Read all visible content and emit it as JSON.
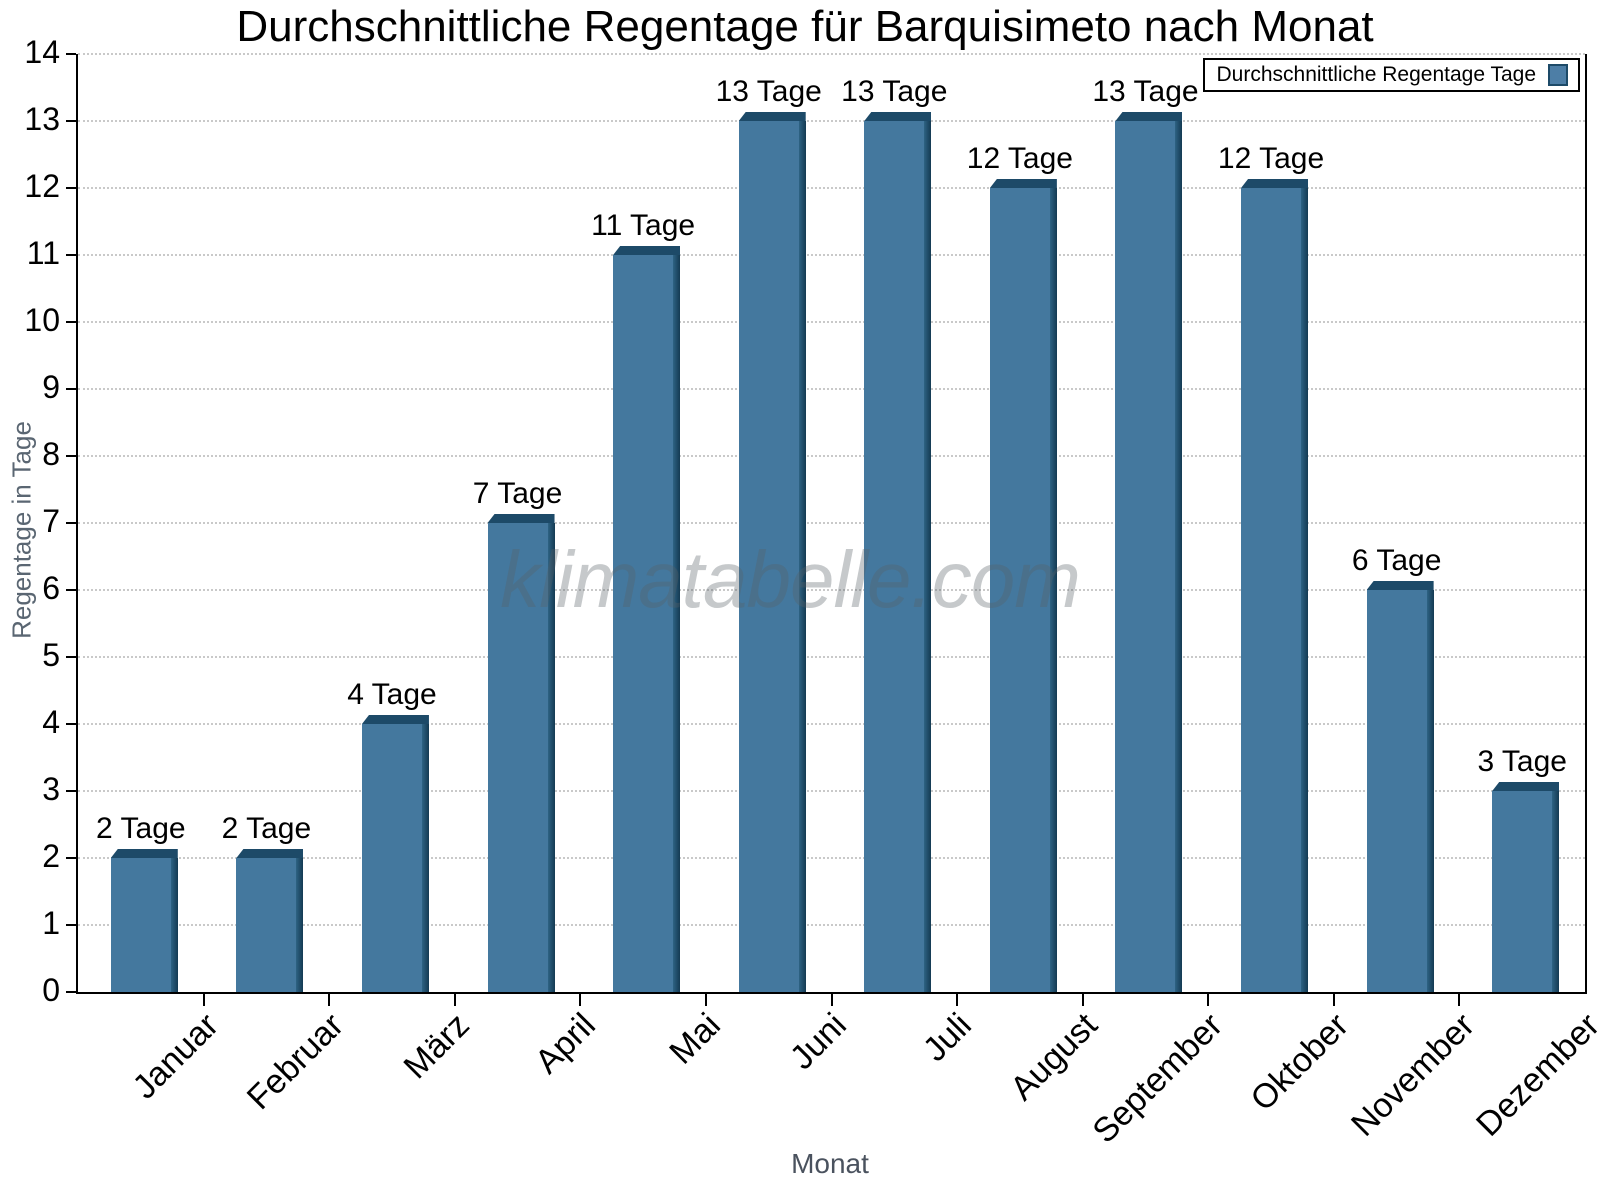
{
  "title": "Durchschnittliche Regentage für Barquisimeto nach Monat",
  "legend": {
    "label": "Durchschnittliche Regentage Tage"
  },
  "watermark": "klimatabelle.com",
  "axis_titles": {
    "y": "Regentage in Tage",
    "x": "Monat"
  },
  "chart_data": {
    "type": "bar",
    "title": "Durchschnittliche Regentage für Barquisimeto nach Monat",
    "xlabel": "Monat",
    "ylabel": "Regentage in Tage",
    "categories": [
      "Januar",
      "Februar",
      "März",
      "April",
      "Mai",
      "Juni",
      "Juli",
      "August",
      "September",
      "Oktober",
      "November",
      "Dezember"
    ],
    "series": [
      {
        "name": "Durchschnittliche Regentage Tage",
        "values": [
          2,
          2,
          4,
          7,
          11,
          13,
          13,
          12,
          13,
          12,
          6,
          3
        ]
      }
    ],
    "value_labels": [
      "2 Tage",
      "2 Tage",
      "4 Tage",
      "7 Tage",
      "11 Tage",
      "13 Tage",
      "13 Tage",
      "12 Tage",
      "13 Tage",
      "12 Tage",
      "6 Tage",
      "3 Tage"
    ],
    "value_label_suffix": " Tage",
    "ylim": [
      0,
      14
    ],
    "ytick_step": 1,
    "y_ticks": [
      0,
      1,
      2,
      3,
      4,
      5,
      6,
      7,
      8,
      9,
      10,
      11,
      12,
      13,
      14
    ],
    "grid": "horizontal-dotted",
    "legend_position": "top-right",
    "colors": {
      "bar_face": "#44789e",
      "bar_side_inner": "#2e6384",
      "bar_side_outer": "#143a52",
      "bar_top": "#1d4a68",
      "grid": "#c9c9c9",
      "axis": "#000000",
      "legend_swatch": "#4d7ea6"
    }
  }
}
